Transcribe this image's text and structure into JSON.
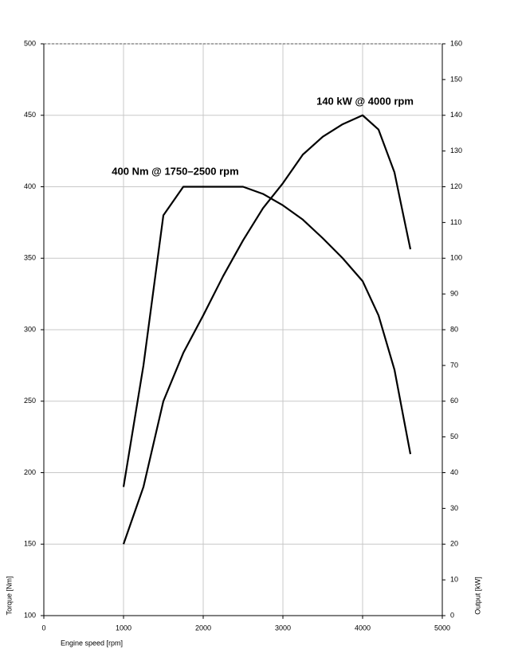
{
  "chart_data": {
    "type": "line",
    "x": [
      1000,
      1250,
      1500,
      1750,
      2000,
      2250,
      2500,
      2750,
      3000,
      3250,
      3500,
      3750,
      4000,
      4200,
      4400,
      4600
    ],
    "series": [
      {
        "color": "#000000",
        "values": [
          190,
          275,
          380,
          400,
          400,
          400,
          400,
          395,
          387,
          377,
          364,
          350,
          334,
          310,
          272,
          213
        ]
      },
      {
        "color": "#000000",
        "axis": "y2",
        "values": [
          20,
          36,
          60,
          73.5,
          84,
          95,
          105,
          114,
          121,
          129,
          134,
          137.5,
          140,
          136,
          124,
          102.5
        ]
      }
    ],
    "xlim": [
      0,
      5000
    ],
    "xticks": [
      0,
      1000,
      2000,
      3000,
      4000,
      5000
    ],
    "ylim": [
      100,
      500
    ],
    "yticks": [
      100,
      150,
      200,
      250,
      300,
      350,
      400,
      450,
      500
    ],
    "y2lim": [
      0,
      160
    ],
    "y2ticks": [
      0,
      10,
      20,
      30,
      40,
      50,
      60,
      70,
      80,
      90,
      100,
      110,
      120,
      130,
      140,
      150,
      160
    ],
    "xlabel": "Engine speed [rpm]",
    "ylabel": "Torque [Nm]",
    "y2label": "Output [kW]",
    "annotations": [
      "400 Nm @ 1750–2500 rpm",
      "140 kW @ 4000 rpm"
    ],
    "grid": true
  }
}
